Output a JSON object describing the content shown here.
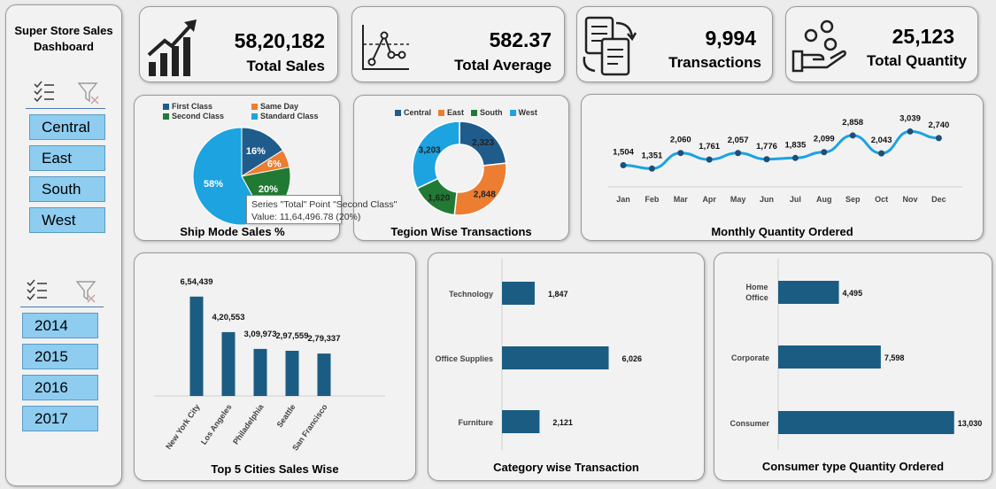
{
  "sidebar": {
    "title_line1": "Super Store Sales",
    "title_line2": "Dashboard",
    "regions": [
      "Central",
      "East",
      "South",
      "West"
    ],
    "years": [
      "2014",
      "2015",
      "2016",
      "2017"
    ]
  },
  "kpis": [
    {
      "value": "58,20,182",
      "label": "Total Sales",
      "icon": "growth-chart-icon"
    },
    {
      "value": "582.37",
      "label": "Total Average",
      "icon": "average-chart-icon"
    },
    {
      "value": "9,994",
      "label": "Transactions",
      "icon": "invoice-transfer-icon"
    },
    {
      "value": "25,123",
      "label": "Total Quantity",
      "icon": "coins-hand-icon"
    }
  ],
  "colors": {
    "first_class": "#1f5c8c",
    "same_day": "#ed7d31",
    "second_class": "#217a33",
    "standard_class": "#1ca3e0",
    "central": "#1f5c8c",
    "east": "#ed7d31",
    "south": "#217a33",
    "west": "#1ca3e0",
    "line": "#1ca3e0",
    "marker": "#1f4e79",
    "bar": "#1a5c82",
    "slicer": "#8ecdf0"
  },
  "tooltip": {
    "line1": "Series \"Total\" Point \"Second Class\"",
    "line2": "Value: 11,64,496.78  (20%)"
  },
  "chart_data": [
    {
      "type": "pie",
      "title": "Ship Mode Sales %",
      "categories": [
        "First Class",
        "Same Day",
        "Second Class",
        "Standard Class"
      ],
      "values": [
        16,
        6,
        20,
        58
      ],
      "labels": [
        "16%",
        "6%",
        "20%",
        "58%"
      ]
    },
    {
      "type": "pie",
      "subtype": "doughnut",
      "title": "Tegion Wise Transactions",
      "categories": [
        "Central",
        "East",
        "South",
        "West"
      ],
      "values": [
        2323,
        2848,
        1620,
        3203
      ],
      "labels": [
        "2,323",
        "2,848",
        "1,620",
        "3,203"
      ]
    },
    {
      "type": "line",
      "title": "Monthly Quantity Ordered",
      "categories": [
        "Jan",
        "Feb",
        "Mar",
        "Apr",
        "May",
        "Jun",
        "Jul",
        "Aug",
        "Sep",
        "Oct",
        "Nov",
        "Dec"
      ],
      "values": [
        1504,
        1351,
        2060,
        1761,
        2057,
        1776,
        1835,
        2099,
        2858,
        2043,
        3039,
        2740
      ],
      "labels": [
        "1,504",
        "1,351",
        "2,060",
        "1,761",
        "2,057",
        "1,776",
        "1,835",
        "2,099",
        "2,858",
        "2,043",
        "3,039",
        "2,740"
      ]
    },
    {
      "type": "bar",
      "title": "Top 5 Cities Sales Wise",
      "categories": [
        "New York City",
        "Los Angeles",
        "Philadelphia",
        "Seattle",
        "San Francisco"
      ],
      "values": [
        654439,
        420553,
        309973,
        297559,
        279337
      ],
      "labels": [
        "6,54,439",
        "4,20,553",
        "3,09,973",
        "2,97,559",
        "2,79,337"
      ]
    },
    {
      "type": "bar",
      "orientation": "horizontal",
      "title": "Category wise Transaction",
      "categories": [
        "Technology",
        "Office Supplies",
        "Furniture"
      ],
      "values": [
        1847,
        6026,
        2121
      ],
      "labels": [
        "1,847",
        "6,026",
        "2,121"
      ]
    },
    {
      "type": "bar",
      "orientation": "horizontal",
      "title": "Consumer type Quantity Ordered",
      "categories": [
        "Home Office",
        "Corporate",
        "Consumer"
      ],
      "values": [
        4495,
        7598,
        13030
      ],
      "labels": [
        "4,495",
        "7,598",
        "13,030"
      ]
    }
  ]
}
